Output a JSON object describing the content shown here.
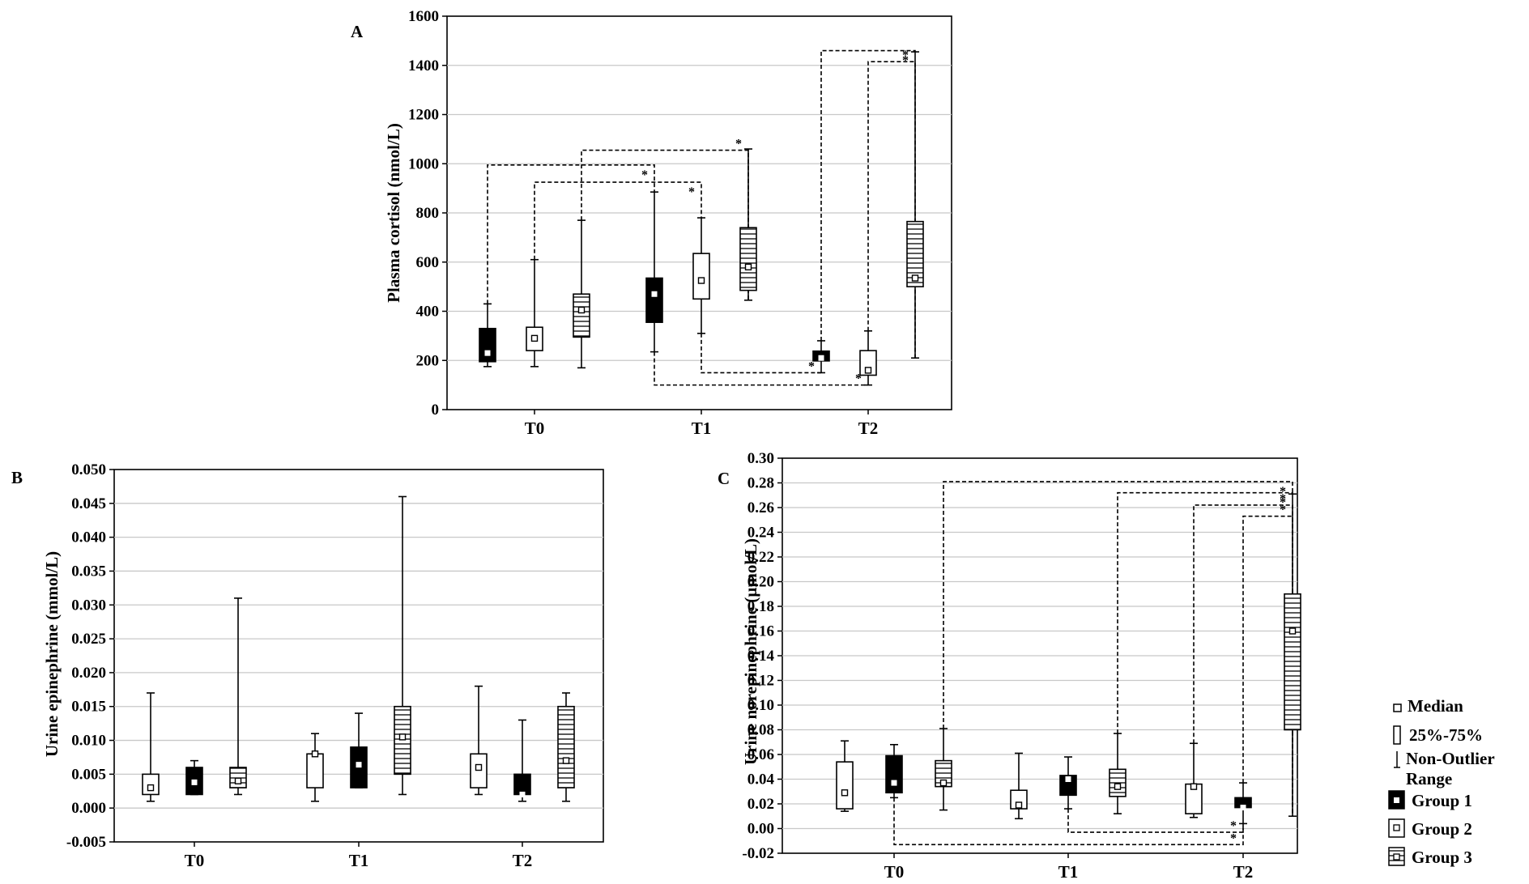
{
  "legend": {
    "median": "Median",
    "iqr": "25%-75%",
    "range": "Non-Outlier Range",
    "groups": [
      "Group 1",
      "Group 2",
      "Group 3"
    ]
  },
  "chart_data": [
    {
      "panel": "A",
      "type": "boxplot",
      "ylabel": "Plasma cortisol (nmol/L)",
      "ylim": [
        0,
        1600
      ],
      "yticks": [
        0,
        200,
        400,
        600,
        800,
        1000,
        1200,
        1400,
        1600
      ],
      "ytick_labels": [
        "0",
        "200",
        "400",
        "600",
        "800",
        "1000",
        "1200",
        "1400",
        "1600"
      ],
      "categories": [
        "T0",
        "T1",
        "T2"
      ],
      "grid": true,
      "series": [
        {
          "name": "Group 1",
          "fill": "black",
          "boxes": [
            {
              "min": 175,
              "q1": 195,
              "median": 230,
              "q3": 330,
              "max": 430
            },
            {
              "min": 235,
              "q1": 355,
              "median": 470,
              "q3": 535,
              "max": 885
            },
            {
              "min": 150,
              "q1": 198,
              "median": 210,
              "q3": 238,
              "max": 280
            }
          ]
        },
        {
          "name": "Group 2",
          "fill": "white",
          "boxes": [
            {
              "min": 175,
              "q1": 240,
              "median": 290,
              "q3": 335,
              "max": 610
            },
            {
              "min": 310,
              "q1": 450,
              "median": 525,
              "q3": 635,
              "max": 780
            },
            {
              "min": 100,
              "q1": 140,
              "median": 160,
              "q3": 240,
              "max": 320
            }
          ]
        },
        {
          "name": "Group 3",
          "fill": "hatch",
          "boxes": [
            {
              "min": 170,
              "q1": 295,
              "median": 405,
              "q3": 470,
              "max": 770
            },
            {
              "min": 445,
              "q1": 485,
              "median": 580,
              "q3": 740,
              "max": 1060
            },
            {
              "min": 210,
              "q1": 500,
              "median": 535,
              "q3": 765,
              "max": 1455
            }
          ]
        }
      ],
      "significance": [
        {
          "from": [
            0,
            0
          ],
          "to": [
            1,
            0
          ],
          "level": 995,
          "label": "*"
        },
        {
          "from": [
            0,
            1
          ],
          "to": [
            1,
            1
          ],
          "level": 925,
          "label": "*"
        },
        {
          "from": [
            0,
            2
          ],
          "to": [
            1,
            2
          ],
          "level": 1055,
          "label": "*"
        },
        {
          "from": [
            1,
            0
          ],
          "to": [
            2,
            1
          ],
          "level": 100,
          "label": "*"
        },
        {
          "from": [
            1,
            1
          ],
          "to": [
            2,
            0
          ],
          "level": 150,
          "label": "*"
        },
        {
          "from": [
            2,
            0
          ],
          "to": [
            2,
            2
          ],
          "level": 1460,
          "label": "*"
        },
        {
          "from": [
            2,
            1
          ],
          "to": [
            2,
            2
          ],
          "level": 1415,
          "label": "*"
        }
      ]
    },
    {
      "panel": "B",
      "type": "boxplot",
      "ylabel": "Urine epinephrine (mmol/L)",
      "ylim": [
        -0.005,
        0.05
      ],
      "yticks": [
        -0.005,
        0,
        0.005,
        0.01,
        0.015,
        0.02,
        0.025,
        0.03,
        0.035,
        0.04,
        0.045,
        0.05
      ],
      "ytick_labels": [
        "-0.005",
        "0.000",
        "0.005",
        "0.010",
        "0.015",
        "0.020",
        "0.025",
        "0.030",
        "0.035",
        "0.040",
        "0.045",
        "0.050"
      ],
      "categories": [
        "T0",
        "T1",
        "T2"
      ],
      "grid": true,
      "series": [
        {
          "name": "Group 2",
          "fill": "white",
          "boxes": [
            {
              "min": 0.001,
              "q1": 0.002,
              "median": 0.003,
              "q3": 0.005,
              "max": 0.017
            },
            {
              "min": 0.001,
              "q1": 0.003,
              "median": 0.008,
              "q3": 0.008,
              "max": 0.011
            },
            {
              "min": 0.002,
              "q1": 0.003,
              "median": 0.006,
              "q3": 0.008,
              "max": 0.018
            }
          ]
        },
        {
          "name": "Group 1",
          "fill": "black",
          "boxes": [
            {
              "min": 0.002,
              "q1": 0.002,
              "median": 0.0038,
              "q3": 0.006,
              "max": 0.007
            },
            {
              "min": 0.003,
              "q1": 0.003,
              "median": 0.0064,
              "q3": 0.009,
              "max": 0.014
            },
            {
              "min": 0.001,
              "q1": 0.002,
              "median": 0.002,
              "q3": 0.005,
              "max": 0.013
            }
          ]
        },
        {
          "name": "Group 3",
          "fill": "hatch",
          "boxes": [
            {
              "min": 0.002,
              "q1": 0.003,
              "median": 0.004,
              "q3": 0.006,
              "max": 0.031
            },
            {
              "min": 0.002,
              "q1": 0.005,
              "median": 0.0105,
              "q3": 0.015,
              "max": 0.046
            },
            {
              "min": 0.001,
              "q1": 0.003,
              "median": 0.007,
              "q3": 0.015,
              "max": 0.017
            }
          ]
        }
      ],
      "significance": []
    },
    {
      "panel": "C",
      "type": "boxplot",
      "ylabel": "Urine norepinephrine (µmol/L)",
      "ylim": [
        -0.02,
        0.3
      ],
      "yticks": [
        -0.02,
        0,
        0.02,
        0.04,
        0.06,
        0.08,
        0.1,
        0.12,
        0.14,
        0.16,
        0.18,
        0.2,
        0.22,
        0.24,
        0.26,
        0.28,
        0.3
      ],
      "ytick_labels": [
        "-0.02",
        "0.00",
        "0.02",
        "0.04",
        "0.06",
        "0.08",
        "0.10",
        "0.12",
        "0.14",
        "0.16",
        "0.18",
        "0.20",
        "0.22",
        "0.24",
        "0.26",
        "0.28",
        "0.30"
      ],
      "categories": [
        "T0",
        "T1",
        "T2"
      ],
      "grid": true,
      "series": [
        {
          "name": "Group 2",
          "fill": "white",
          "boxes": [
            {
              "min": 0.014,
              "q1": 0.016,
              "median": 0.029,
              "q3": 0.054,
              "max": 0.071
            },
            {
              "min": 0.008,
              "q1": 0.016,
              "median": 0.019,
              "q3": 0.031,
              "max": 0.061
            },
            {
              "min": 0.009,
              "q1": 0.012,
              "median": 0.034,
              "q3": 0.036,
              "max": 0.069
            }
          ]
        },
        {
          "name": "Group 1",
          "fill": "black",
          "boxes": [
            {
              "min": 0.025,
              "q1": 0.029,
              "median": 0.037,
              "q3": 0.059,
              "max": 0.068
            },
            {
              "min": 0.016,
              "q1": 0.027,
              "median": 0.04,
              "q3": 0.043,
              "max": 0.058
            },
            {
              "min": 0.004,
              "q1": 0.017,
              "median": 0.017,
              "q3": 0.025,
              "max": 0.037
            }
          ]
        },
        {
          "name": "Group 3",
          "fill": "hatch",
          "boxes": [
            {
              "min": 0.015,
              "q1": 0.034,
              "median": 0.037,
              "q3": 0.055,
              "max": 0.081
            },
            {
              "min": 0.012,
              "q1": 0.026,
              "median": 0.034,
              "q3": 0.048,
              "max": 0.077
            },
            {
              "min": 0.01,
              "q1": 0.08,
              "median": 0.16,
              "q3": 0.19,
              "max": 0.271
            }
          ]
        }
      ],
      "significance": [
        {
          "from": [
            0,
            1
          ],
          "to": [
            2,
            1
          ],
          "level": -0.013,
          "label": "*"
        },
        {
          "from": [
            1,
            1
          ],
          "to": [
            2,
            1
          ],
          "level": -0.003,
          "label": "*"
        },
        {
          "from": [
            0,
            2
          ],
          "to": [
            2,
            2
          ],
          "level": 0.281,
          "label": "*"
        },
        {
          "from": [
            1,
            2
          ],
          "to": [
            2,
            2
          ],
          "level": 0.272,
          "label": "*"
        },
        {
          "from": [
            2,
            0
          ],
          "to": [
            2,
            2
          ],
          "level": 0.262,
          "label": "*"
        },
        {
          "from": [
            2,
            1
          ],
          "to": [
            2,
            2
          ],
          "level": 0.253,
          "label": "*"
        }
      ]
    }
  ]
}
